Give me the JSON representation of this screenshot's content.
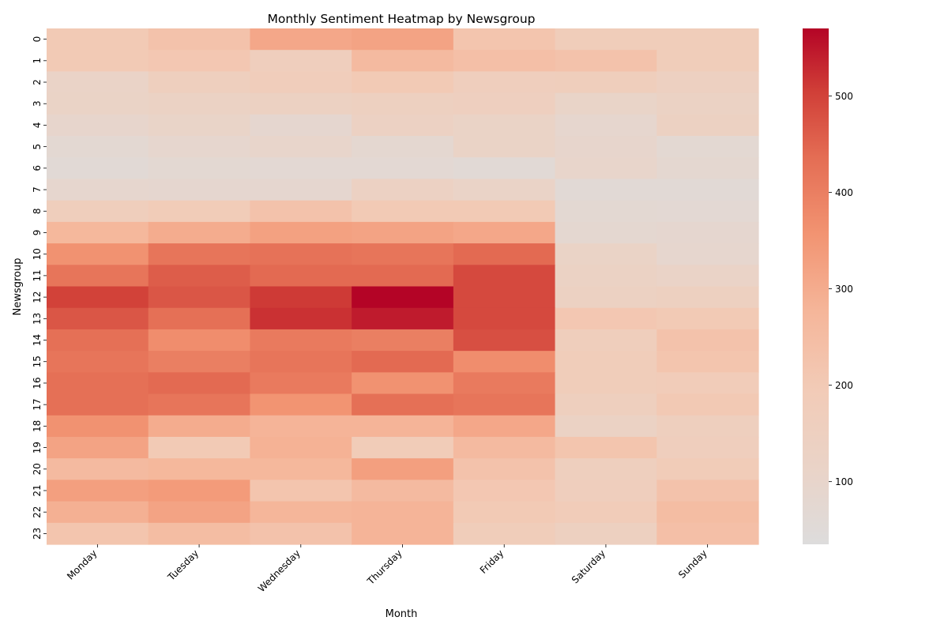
{
  "chart_data": {
    "type": "heatmap",
    "title": "Monthly Sentiment Heatmap by Newsgroup",
    "xlabel": "Month",
    "ylabel": "Newsgroup",
    "x_categories": [
      "Monday",
      "Tuesday",
      "Wednesday",
      "Thursday",
      "Friday",
      "Saturday",
      "Sunday"
    ],
    "y_categories": [
      "0",
      "1",
      "2",
      "3",
      "4",
      "5",
      "6",
      "7",
      "8",
      "9",
      "10",
      "11",
      "12",
      "13",
      "14",
      "15",
      "16",
      "17",
      "18",
      "19",
      "20",
      "21",
      "22",
      "23"
    ],
    "values": [
      [
        200,
        230,
        310,
        320,
        220,
        180,
        180
      ],
      [
        200,
        210,
        165,
        260,
        240,
        230,
        180
      ],
      [
        115,
        160,
        175,
        200,
        165,
        170,
        145
      ],
      [
        120,
        130,
        140,
        150,
        155,
        110,
        130
      ],
      [
        95,
        110,
        85,
        135,
        120,
        90,
        140
      ],
      [
        75,
        90,
        100,
        80,
        120,
        95,
        75
      ],
      [
        60,
        75,
        70,
        70,
        60,
        100,
        80
      ],
      [
        90,
        85,
        85,
        135,
        115,
        60,
        60
      ],
      [
        170,
        190,
        230,
        200,
        200,
        75,
        70
      ],
      [
        270,
        300,
        325,
        320,
        310,
        80,
        85
      ],
      [
        360,
        420,
        425,
        420,
        440,
        120,
        90
      ],
      [
        420,
        460,
        440,
        440,
        490,
        130,
        115
      ],
      [
        500,
        470,
        510,
        570,
        490,
        140,
        150
      ],
      [
        470,
        430,
        520,
        545,
        490,
        210,
        200
      ],
      [
        430,
        370,
        410,
        400,
        480,
        170,
        230
      ],
      [
        420,
        400,
        420,
        440,
        370,
        180,
        220
      ],
      [
        430,
        440,
        410,
        360,
        410,
        180,
        185
      ],
      [
        430,
        420,
        355,
        430,
        420,
        160,
        205
      ],
      [
        360,
        300,
        280,
        280,
        310,
        130,
        160
      ],
      [
        320,
        200,
        285,
        190,
        260,
        220,
        165
      ],
      [
        260,
        270,
        270,
        330,
        230,
        160,
        190
      ],
      [
        330,
        340,
        220,
        260,
        210,
        165,
        230
      ],
      [
        290,
        320,
        275,
        280,
        200,
        185,
        250
      ],
      [
        220,
        250,
        230,
        280,
        180,
        150,
        240
      ]
    ],
    "colorbar": {
      "min": 35,
      "max": 570,
      "ticks": [
        "100",
        "200",
        "300",
        "400",
        "500"
      ],
      "colormap": "coolwarm (upper half)"
    },
    "grid": false,
    "legend": "colorbar-right"
  },
  "colors": {
    "background": "#ffffff",
    "low": "#dddcdc",
    "high": "#b40426"
  }
}
